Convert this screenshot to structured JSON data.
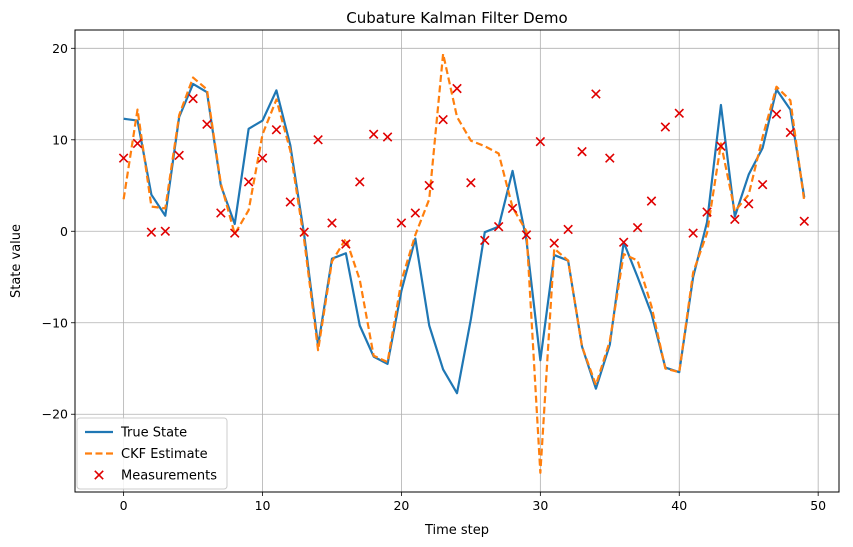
{
  "chart_data": {
    "type": "line",
    "title": "Cubature Kalman Filter Demo",
    "xlabel": "Time step",
    "ylabel": "State value",
    "xlim": [
      -3.5,
      51.5
    ],
    "ylim": [
      -28.5,
      22.0
    ],
    "xticks": [
      0,
      10,
      20,
      30,
      40,
      50
    ],
    "yticks": [
      -20,
      -10,
      0,
      10,
      20
    ],
    "xtick_labels": [
      "0",
      "10",
      "20",
      "30",
      "40",
      "50"
    ],
    "ytick_labels": [
      "−20",
      "−10",
      "0",
      "10",
      "20"
    ],
    "grid": true,
    "legend_position": "lower-left",
    "x": [
      0,
      1,
      2,
      3,
      4,
      5,
      6,
      7,
      8,
      9,
      10,
      11,
      12,
      13,
      14,
      15,
      16,
      17,
      18,
      19,
      20,
      21,
      22,
      23,
      24,
      25,
      26,
      27,
      28,
      29,
      30,
      31,
      32,
      33,
      34,
      35,
      36,
      37,
      38,
      39,
      40,
      41,
      42,
      43,
      44,
      45,
      46,
      47,
      48,
      49
    ],
    "series": [
      {
        "name": "True State",
        "kind": "line",
        "color": "#1f77b4",
        "dash": "solid",
        "values": [
          12.3,
          12.1,
          4.0,
          1.7,
          12.5,
          16.1,
          15.2,
          5.0,
          0.8,
          11.2,
          12.1,
          15.4,
          9.4,
          -0.4,
          -12.5,
          -3.0,
          -2.4,
          -10.3,
          -13.7,
          -14.5,
          -6.5,
          -0.8,
          -10.3,
          -15.1,
          -17.7,
          -9.6,
          -0.1,
          0.5,
          6.6,
          -1.0,
          -14.1,
          -2.6,
          -3.2,
          -12.6,
          -17.2,
          -12.4,
          -1.2,
          -5.0,
          -9.0,
          -14.9,
          -15.4,
          -5.0,
          1.0,
          13.8,
          1.6,
          6.2,
          9.1,
          15.5,
          13.3,
          3.7
        ]
      },
      {
        "name": "CKF Estimate",
        "kind": "line",
        "color": "#ff7f0e",
        "dash": "dashed",
        "values": [
          3.5,
          13.3,
          2.7,
          2.5,
          12.7,
          16.8,
          15.5,
          5.2,
          -0.3,
          2.3,
          10.6,
          14.4,
          8.8,
          -1.0,
          -13.0,
          -3.3,
          -0.8,
          -5.3,
          -13.6,
          -14.3,
          -5.4,
          -0.4,
          3.5,
          19.4,
          12.5,
          9.9,
          9.3,
          8.5,
          2.6,
          0.0,
          -26.4,
          -1.9,
          -3.2,
          -12.6,
          -16.8,
          -12.0,
          -2.5,
          -3.2,
          -8.2,
          -15.0,
          -15.4,
          -4.5,
          -0.2,
          9.6,
          2.2,
          4.0,
          10.3,
          15.8,
          14.3,
          3.3
        ]
      },
      {
        "name": "Measurements",
        "kind": "scatter",
        "color": "#e00000",
        "marker": "x",
        "values": [
          8.0,
          9.6,
          -0.1,
          0.0,
          8.3,
          14.5,
          11.7,
          2.0,
          -0.2,
          5.4,
          8.0,
          11.1,
          3.2,
          -0.1,
          10.0,
          0.9,
          -1.4,
          5.4,
          10.6,
          10.3,
          0.9,
          2.0,
          5.0,
          12.2,
          15.6,
          5.3,
          -1.0,
          0.5,
          2.5,
          -0.4,
          9.8,
          -1.3,
          0.2,
          8.7,
          15.0,
          8.0,
          -1.2,
          0.4,
          3.3,
          11.4,
          12.9,
          -0.2,
          2.1,
          9.3,
          1.3,
          3.0,
          5.1,
          12.8,
          10.8,
          1.1
        ]
      }
    ]
  }
}
